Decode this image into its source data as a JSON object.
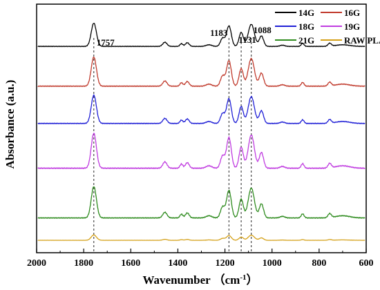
{
  "chart_data": {
    "type": "line",
    "xlabel": "Wavenumber （cm",
    "xlabel_sup": "-1",
    "xlabel_close": "）",
    "ylabel": "Absorbance (a.u.)",
    "xlim": [
      2000,
      600
    ],
    "x_reversed": true,
    "x_ticks": [
      2000,
      1800,
      1600,
      1400,
      1200,
      1000,
      800,
      600
    ],
    "y_ticks_shown": false,
    "legend_position": "top-right",
    "peaks": [
      {
        "label": "1757",
        "x": 1757
      },
      {
        "label": "1183",
        "x": 1183
      },
      {
        "label": "1131",
        "x": 1131
      },
      {
        "label": "1088",
        "x": 1088
      }
    ],
    "series": [
      {
        "name": "14G",
        "color": "#000000",
        "baseline": 0.83,
        "scale": 0.52
      },
      {
        "name": "16G",
        "color": "#c0392b",
        "baseline": 0.67,
        "scale": 0.65
      },
      {
        "name": "18G",
        "color": "#1f1fd6",
        "baseline": 0.52,
        "scale": 0.63
      },
      {
        "name": "19G",
        "color": "#c03ce0",
        "baseline": 0.34,
        "scale": 0.78
      },
      {
        "name": "21G",
        "color": "#2e8b1e",
        "baseline": 0.14,
        "scale": 0.7
      },
      {
        "name": "RAW PLA",
        "color": "#d4a017",
        "baseline": 0.05,
        "scale": 0.12
      }
    ]
  }
}
